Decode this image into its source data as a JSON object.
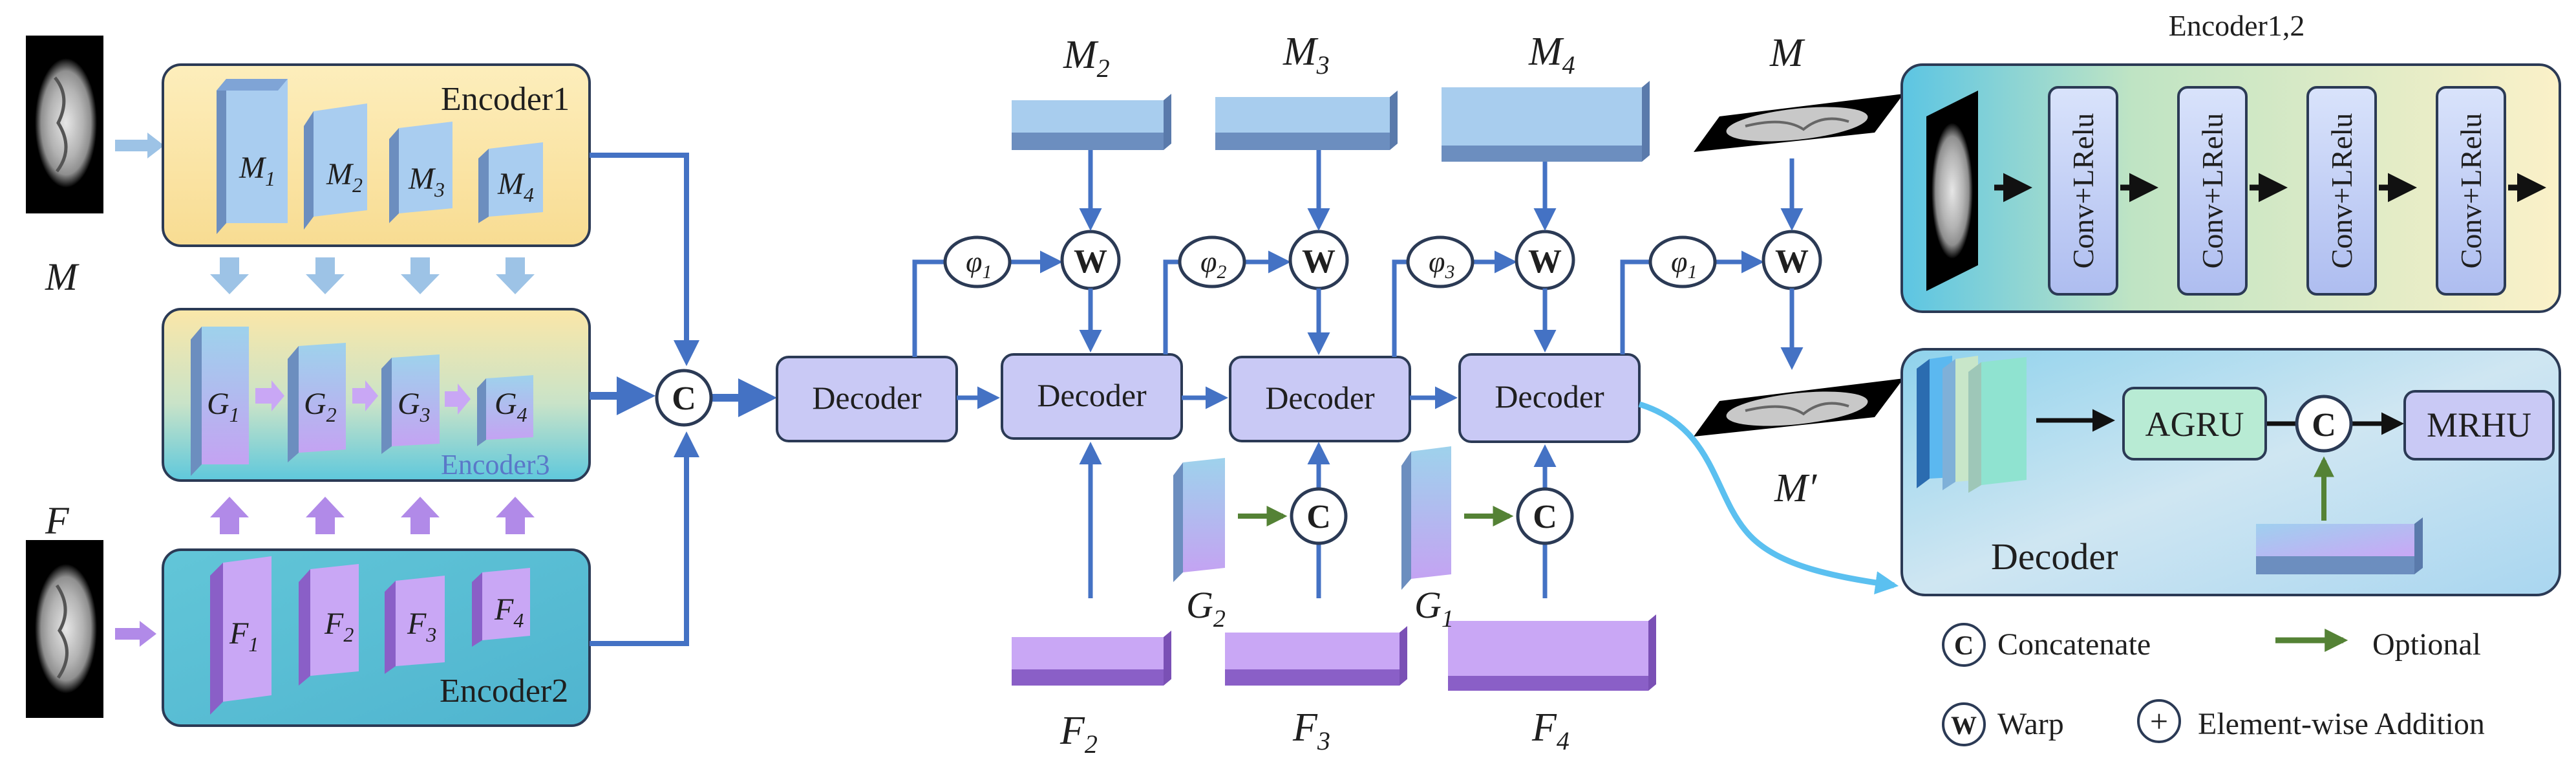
{
  "inputs": {
    "moving": "M",
    "fixed": "F"
  },
  "encoder1": {
    "title": "Encoder1",
    "features": [
      "M",
      "M",
      "M",
      "M"
    ],
    "subs": [
      "1",
      "2",
      "3",
      "4"
    ]
  },
  "encoder3": {
    "title": "Encoder3",
    "features": [
      "G",
      "G",
      "G",
      "G"
    ],
    "subs": [
      "1",
      "2",
      "3",
      "4"
    ]
  },
  "encoder2": {
    "title": "Encoder2",
    "features": [
      "F",
      "F",
      "F",
      "F"
    ],
    "subs": [
      "1",
      "2",
      "3",
      "4"
    ]
  },
  "concat_symbol": "C",
  "warp_symbol": "W",
  "decoder_label": "Decoder",
  "top_maps": [
    {
      "base": "M",
      "sub": "2"
    },
    {
      "base": "M",
      "sub": "3"
    },
    {
      "base": "M",
      "sub": "4"
    },
    {
      "base": "M",
      "sub": ""
    }
  ],
  "bottom_maps": [
    {
      "base": "F",
      "sub": "2"
    },
    {
      "base": "F",
      "sub": "3"
    },
    {
      "base": "F",
      "sub": "4"
    }
  ],
  "g_maps": [
    {
      "base": "G",
      "sub": "2"
    },
    {
      "base": "G",
      "sub": "1"
    }
  ],
  "phis": [
    {
      "base": "φ",
      "sub": "1"
    },
    {
      "base": "φ",
      "sub": "2"
    },
    {
      "base": "φ",
      "sub": "3"
    },
    {
      "base": "φ",
      "sub": "1"
    }
  ],
  "warped_output": "M′",
  "encoder_detail": {
    "title": "Encoder1,2",
    "blocks": [
      "Conv+LRelu",
      "Conv+LRelu",
      "Conv+LRelu",
      "Conv+LRelu"
    ]
  },
  "decoder_detail": {
    "agru": "AGRU",
    "mrhu": "MRHU",
    "title": "Decoder"
  },
  "legend": {
    "concatenate": "Concatenate",
    "optional": "Optional",
    "warp": "Warp",
    "addition": "Element-wise Addition",
    "plus_symbol": "+"
  },
  "colors": {
    "arrow_blue": "#4472c4",
    "light_arrow": "#9dc3e6",
    "purple_arrow": "#b18ae8",
    "optional_green": "#548235",
    "decoder_fill": "#c9c9f5",
    "cyan_curve": "#5bc0f0"
  }
}
